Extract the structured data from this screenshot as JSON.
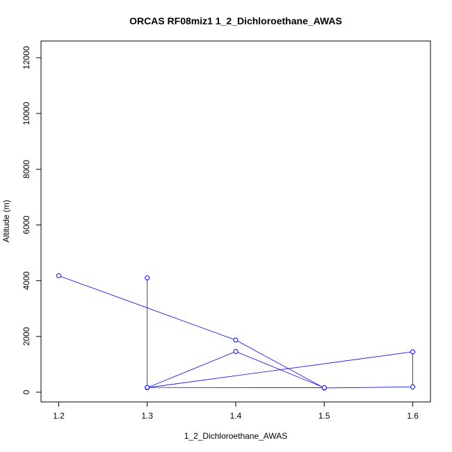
{
  "chart_data": {
    "type": "line",
    "title": "ORCAS RF08miz1 1_2_Dichloroethane_AWAS",
    "xlabel": "1_2_Dichloroethane_AWAS",
    "ylabel": "Altitude (m)",
    "xlim": [
      1.18,
      1.62
    ],
    "ylim": [
      -350,
      12600
    ],
    "xticks": [
      "1.2",
      "1.3",
      "1.4",
      "1.5",
      "1.6"
    ],
    "yticks": [
      "0",
      "2000",
      "4000",
      "6000",
      "8000",
      "10000",
      "12000"
    ],
    "grid": false,
    "series": [
      {
        "color": "#0000ff",
        "points": [
          {
            "x": 1.2,
            "y": 4180
          },
          {
            "x": 1.4,
            "y": 1870
          },
          {
            "x": 1.5,
            "y": 150
          },
          {
            "x": 1.6,
            "y": 190
          },
          {
            "x": 1.6,
            "y": 1450
          },
          {
            "x": 1.3,
            "y": 160
          },
          {
            "x": 1.4,
            "y": 1460
          },
          {
            "x": 1.5,
            "y": 160
          },
          {
            "x": 1.3,
            "y": 170
          },
          {
            "x": 1.3,
            "y": 4100
          }
        ]
      }
    ]
  }
}
